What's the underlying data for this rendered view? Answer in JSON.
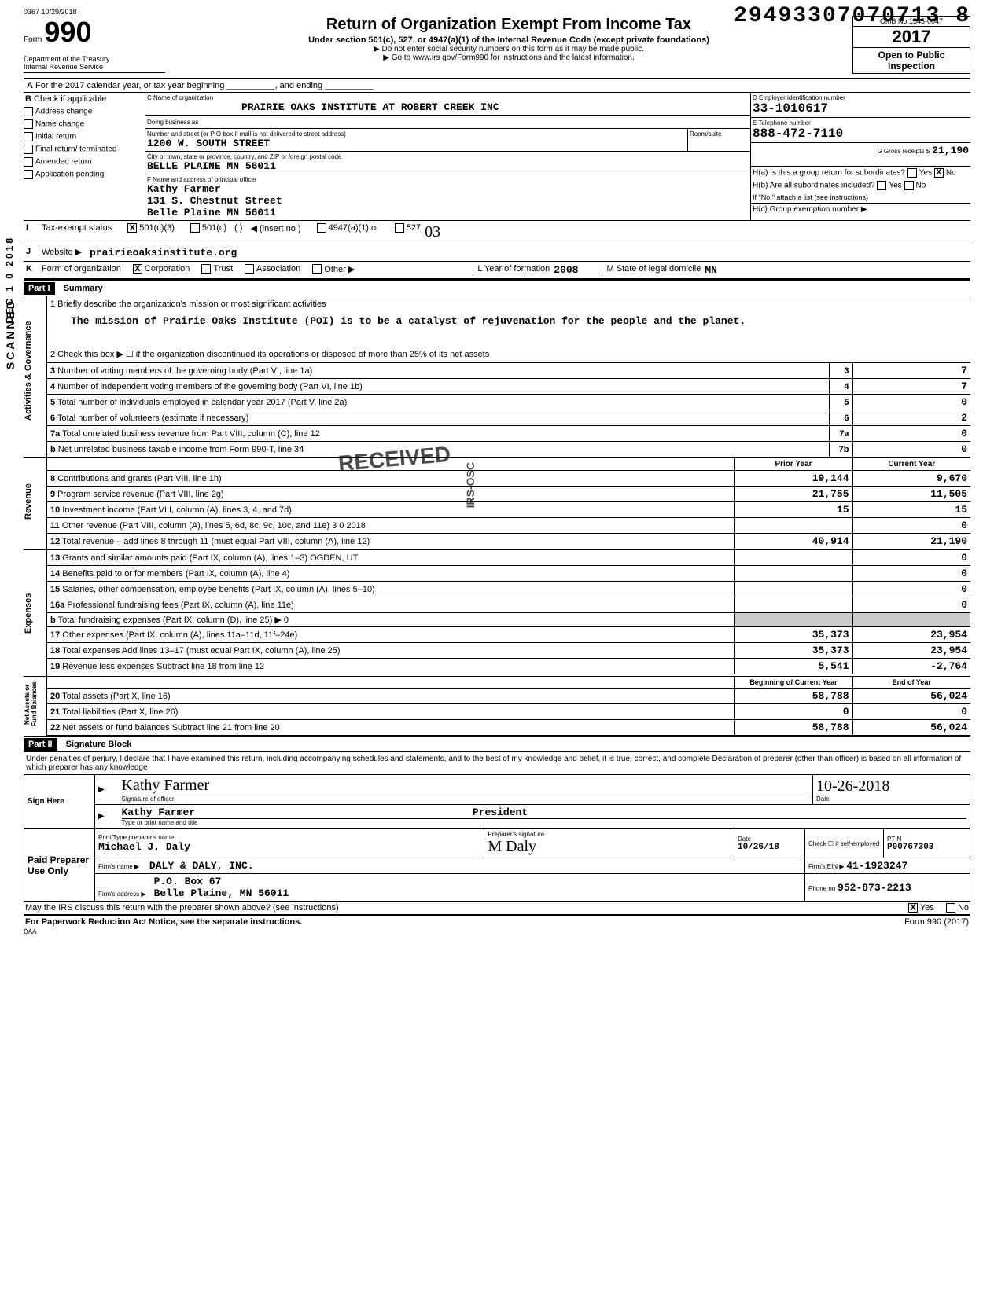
{
  "topleft_stamp": "0367 10/29/2018",
  "top_number": "29493307070713 8",
  "form": {
    "number": "990",
    "label": "Form",
    "title": "Return of Organization Exempt From Income Tax",
    "subtitle": "Under section 501(c), 527, or 4947(a)(1) of the Internal Revenue Code (except private foundations)",
    "ssn_warning": "▶ Do not enter social security numbers on this form as it may be made public.",
    "goto": "▶ Go to www.irs gov/Form990 for instructions and the latest information.",
    "dept": "Department of the Treasury",
    "irs": "Internal Revenue Service",
    "omb": "OMB No 1545-0047",
    "year": "2017",
    "open": "Open to Public",
    "inspection": "Inspection"
  },
  "line_a": "For the 2017 calendar year, or tax year beginning __________, and ending __________",
  "section_b": {
    "header": "Check if applicable",
    "items": [
      "Address change",
      "Name change",
      "Initial return",
      "Final return/ terminated",
      "Amended return",
      "Application pending"
    ]
  },
  "section_c": {
    "name_label": "C Name of organization",
    "name": "PRAIRIE OAKS INSTITUTE AT ROBERT CREEK INC",
    "dba_label": "Doing business as",
    "dba": "",
    "addr_label": "Number and street (or P O box if mail is not delivered to street address)",
    "addr": "1200 W. SOUTH STREET",
    "room_label": "Room/suite",
    "city_label": "City or town, state or province, country, and ZIP or foreign postal code",
    "city": "BELLE PLAINE          MN 56011",
    "officer_label": "F Name and address of principal officer",
    "officer_name": "Kathy Farmer",
    "officer_addr": "131 S. Chestnut Street",
    "officer_city": "Belle Plaine          MN 56011"
  },
  "section_d": {
    "ein_label": "D Employer identification number",
    "ein": "33-1010617",
    "phone_label": "E Telephone number",
    "phone": "888-472-7110",
    "gross_label": "G Gross receipts $",
    "gross": "21,190",
    "ha_label": "H(a) Is this a group return for subordinates?",
    "ha_yes": "Yes",
    "ha_no": "No",
    "ha_checked": "X",
    "hb_label": "H(b) Are all subordinates included?",
    "hb_note": "If \"No,\" attach a list (see instructions)",
    "hc_label": "H(c) Group exemption number ▶"
  },
  "tax_status": {
    "label": "Tax-exempt status",
    "opt1": "501(c)(3)",
    "opt1_checked": "X",
    "opt2": "501(c)",
    "insert": "◀ (insert no )",
    "opt3": "4947(a)(1) or",
    "opt4": "527",
    "handwritten_527": "03"
  },
  "website": {
    "label": "Website ▶",
    "value": "prairieoaksinstitute.org"
  },
  "form_org": {
    "label": "Form of organization",
    "corp": "Corporation",
    "corp_checked": "X",
    "trust": "Trust",
    "assoc": "Association",
    "other": "Other ▶",
    "year_label": "L   Year of formation",
    "year": "2008",
    "state_label": "M   State of legal domicile",
    "state": "MN"
  },
  "outer_labels": {
    "scanned": "SCANNED",
    "date": "DEC 1 0 2018"
  },
  "part1": {
    "header": "Part I",
    "title": "Summary",
    "tab_activities": "Activities & Governance",
    "tab_revenue": "Revenue",
    "tab_expenses": "Expenses",
    "tab_netassets": "Net Assets or Fund Balances",
    "line1_label": "1  Briefly describe the organization's mission or most significant activities",
    "line1_text": "The mission of Prairie Oaks Institute (POI) is to be a catalyst of rejuvenation for the people and the planet.",
    "line2": "2  Check this box ▶ ☐  if the organization discontinued its operations or disposed of more than 25% of its net assets",
    "lines": [
      {
        "n": "3",
        "t": "Number of voting members of the governing body (Part VI, line 1a)",
        "c": "3",
        "v": "7"
      },
      {
        "n": "4",
        "t": "Number of independent voting members of the governing body (Part VI, line 1b)",
        "c": "4",
        "v": "7"
      },
      {
        "n": "5",
        "t": "Total number of individuals employed in calendar year 2017 (Part V, line 2a)",
        "c": "5",
        "v": "0"
      },
      {
        "n": "6",
        "t": "Total number of volunteers (estimate if necessary)",
        "c": "6",
        "v": "2"
      },
      {
        "n": "7a",
        "t": "Total unrelated business revenue from Part VIII, column (C), line 12",
        "c": "7a",
        "v": "0"
      },
      {
        "n": "b",
        "t": "Net unrelated business taxable income from Form 990-T, line 34",
        "c": "7b",
        "v": "0"
      }
    ],
    "prior_year": "Prior Year",
    "current_year": "Current Year",
    "rev_lines": [
      {
        "n": "8",
        "t": "Contributions and grants (Part VIII, line 1h)",
        "p": "19,144",
        "c": "9,670"
      },
      {
        "n": "9",
        "t": "Program service revenue (Part VIII, line 2g)",
        "p": "21,755",
        "c": "11,505"
      },
      {
        "n": "10",
        "t": "Investment income (Part VIII, column (A), lines 3, 4, and 7d)",
        "p": "15",
        "c": "15"
      },
      {
        "n": "11",
        "t": "Other revenue (Part VIII, column (A), lines 5, 6d, 8c, 9c, 10c, and 11e) 3 0 2018",
        "p": "",
        "c": "0"
      },
      {
        "n": "12",
        "t": "Total revenue – add lines 8 through 11 (must equal Part VIII, column (A), line 12)",
        "p": "40,914",
        "c": "21,190"
      }
    ],
    "exp_lines": [
      {
        "n": "13",
        "t": "Grants and similar amounts paid (Part IX, column (A), lines 1–3) OGDEN, UT",
        "p": "",
        "c": "0"
      },
      {
        "n": "14",
        "t": "Benefits paid to or for members (Part IX, column (A), line 4)",
        "p": "",
        "c": "0"
      },
      {
        "n": "15",
        "t": "Salaries, other compensation, employee benefits (Part IX, column (A), lines 5–10)",
        "p": "",
        "c": "0"
      },
      {
        "n": "16a",
        "t": "Professional fundraising fees (Part IX, column (A), line 11e)",
        "p": "",
        "c": "0"
      },
      {
        "n": "b",
        "t": "Total fundraising expenses (Part IX, column (D), line 25) ▶                                            0",
        "p": "shaded",
        "c": "shaded"
      },
      {
        "n": "17",
        "t": "Other expenses (Part IX, column (A), lines 11a–11d, 11f–24e)",
        "p": "35,373",
        "c": "23,954"
      },
      {
        "n": "18",
        "t": "Total expenses Add lines 13–17 (must equal Part IX, column (A), line 25)",
        "p": "35,373",
        "c": "23,954"
      },
      {
        "n": "19",
        "t": "Revenue less expenses Subtract line 18 from line 12",
        "p": "5,541",
        "c": "-2,764"
      }
    ],
    "boy": "Beginning of Current Year",
    "eoy": "End of Year",
    "net_lines": [
      {
        "n": "20",
        "t": "Total assets (Part X, line 16)",
        "p": "58,788",
        "c": "56,024"
      },
      {
        "n": "21",
        "t": "Total liabilities (Part X, line 26)",
        "p": "0",
        "c": "0"
      },
      {
        "n": "22",
        "t": "Net assets or fund balances Subtract line 21 from line 20",
        "p": "58,788",
        "c": "56,024"
      }
    ],
    "received_stamp": "RECEIVED",
    "irs_osc": "IRS-OSC"
  },
  "part2": {
    "header": "Part II",
    "title": "Signature Block",
    "perjury": "Under penalties of perjury, I declare that I have examined this return, including accompanying schedules and statements, and to the best of my knowledge and belief, it is true, correct, and complete Declaration of preparer (other than officer) is based on all information of which preparer has any knowledge",
    "sign_here": "Sign Here",
    "sig_label": "Signature of officer",
    "sig_value": "Kathy Farmer",
    "date_label": "Date",
    "date_value": "10-26-2018",
    "name_label": "Type or print name and title",
    "name_value": "Kathy Farmer",
    "title_value": "President",
    "paid": "Paid Preparer Use Only",
    "prep_name_label": "Print/Type preparer's name",
    "prep_name": "Michael J. Daly",
    "prep_sig_label": "Preparer's signature",
    "prep_date_label": "Date",
    "prep_date": "10/26/18",
    "check_label": "Check ☐ if self-employed",
    "ptin_label": "PTIN",
    "ptin": "P00767303",
    "firm_name_label": "Firm's name    ▶",
    "firm_name": "DALY & DALY, INC.",
    "firm_ein_label": "Firm's EIN ▶",
    "firm_ein": "41-1923247",
    "firm_addr_label": "Firm's address  ▶",
    "firm_addr1": "P.O. Box 67",
    "firm_addr2": "Belle Plaine, MN   56011",
    "phone_label": "Phone no",
    "phone": "952-873-2213"
  },
  "footer": {
    "discuss": "May the IRS discuss this return with the preparer shown above? (see instructions)",
    "discuss_yes": "Yes",
    "discuss_no": "No",
    "discuss_checked": "X",
    "paperwork": "For Paperwork Reduction Act Notice, see the separate instructions.",
    "daa": "DAA",
    "form_foot": "Form 990 (2017)"
  }
}
